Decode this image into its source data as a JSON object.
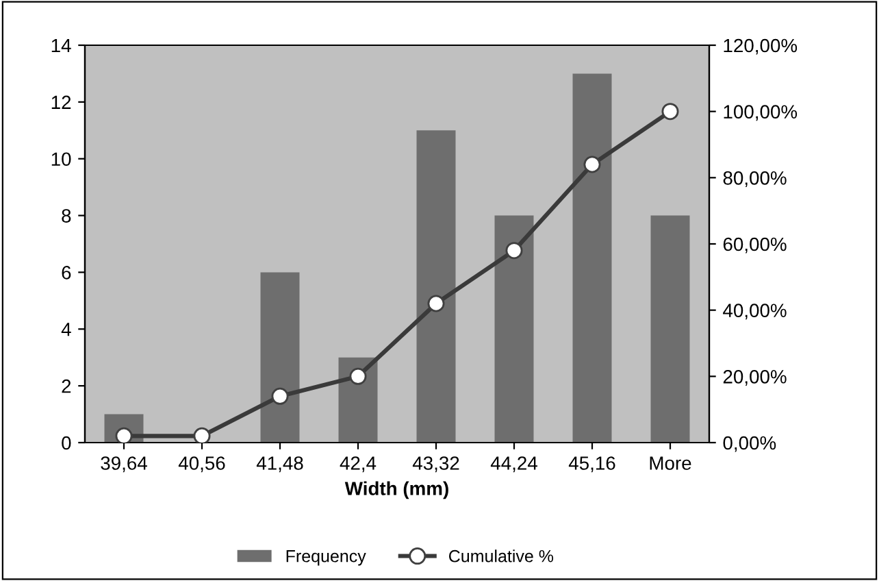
{
  "chart_data": {
    "type": "bar",
    "xlabel": "Width (mm)",
    "categories": [
      "39,64",
      "40,56",
      "41,48",
      "42,4",
      "43,32",
      "44,24",
      "45,16",
      "More"
    ],
    "series": [
      {
        "name": "Frequency",
        "color": "#6e6e6e",
        "values": [
          1,
          0,
          6,
          3,
          11,
          8,
          13,
          8
        ]
      },
      {
        "name": "Cumulative %",
        "type": "line",
        "axis": "y2",
        "color": "#3a3a3a",
        "marker": "circle",
        "line_style": "solid",
        "values": [
          2,
          2,
          14,
          20,
          42,
          58,
          84,
          100
        ]
      }
    ],
    "ylim": [
      0,
      14
    ],
    "yticks": [
      0,
      2,
      4,
      6,
      8,
      10,
      12,
      14
    ],
    "y2lim": [
      0,
      120
    ],
    "y2ticks": [
      {
        "value": 0,
        "label": "0,00%"
      },
      {
        "value": 20,
        "label": "20,00%"
      },
      {
        "value": 40,
        "label": "40,00%"
      },
      {
        "value": 60,
        "label": "60,00%"
      },
      {
        "value": 80,
        "label": "80,00%"
      },
      {
        "value": 100,
        "label": "100,00%"
      },
      {
        "value": 120,
        "label": "120,00%"
      }
    ],
    "grid": false,
    "legend": "bottom"
  }
}
